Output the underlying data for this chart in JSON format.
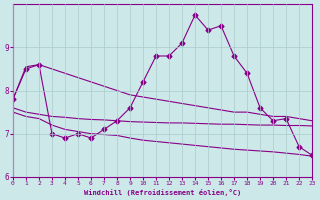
{
  "background_color": "#cce8e8",
  "grid_color": "#aacccc",
  "line_color": "#880088",
  "xlabel": "Windchill (Refroidissement éolien,°C)",
  "xlim": [
    0,
    23
  ],
  "ylim": [
    6,
    10
  ],
  "yticks": [
    6,
    7,
    8,
    9
  ],
  "xticks": [
    0,
    1,
    2,
    3,
    4,
    5,
    6,
    7,
    8,
    9,
    10,
    11,
    12,
    13,
    14,
    15,
    16,
    17,
    18,
    19,
    20,
    21,
    22,
    23
  ],
  "series": [
    {
      "x": [
        0,
        1,
        2,
        3,
        4,
        5,
        6,
        7,
        8,
        9,
        10,
        11,
        12,
        13,
        14,
        15,
        16,
        17,
        18,
        19,
        20,
        21,
        22,
        23
      ],
      "y": [
        7.8,
        8.5,
        8.6,
        7.0,
        6.9,
        7.0,
        6.9,
        7.1,
        7.3,
        7.6,
        8.2,
        8.8,
        8.8,
        9.1,
        9.75,
        9.4,
        9.5,
        8.8,
        8.4,
        7.6,
        7.3,
        7.35,
        6.7,
        6.5
      ],
      "marker": "D",
      "markersize": 2.5
    },
    {
      "x": [
        0,
        1,
        2,
        3,
        4,
        5,
        6,
        7,
        8,
        9,
        10,
        11,
        12,
        13,
        14,
        15,
        16,
        17,
        18,
        19,
        20,
        21,
        22,
        23
      ],
      "y": [
        7.8,
        8.55,
        8.6,
        8.5,
        8.4,
        8.3,
        8.2,
        8.1,
        8.0,
        7.9,
        7.85,
        7.8,
        7.75,
        7.7,
        7.65,
        7.6,
        7.55,
        7.5,
        7.5,
        7.45,
        7.4,
        7.4,
        7.35,
        7.3
      ],
      "marker": null,
      "markersize": 0
    },
    {
      "x": [
        0,
        1,
        2,
        3,
        4,
        5,
        6,
        7,
        8,
        9,
        10,
        11,
        12,
        13,
        14,
        15,
        16,
        17,
        18,
        19,
        20,
        21,
        22,
        23
      ],
      "y": [
        7.6,
        7.5,
        7.45,
        7.4,
        7.38,
        7.35,
        7.33,
        7.32,
        7.3,
        7.28,
        7.27,
        7.26,
        7.25,
        7.25,
        7.24,
        7.23,
        7.22,
        7.22,
        7.21,
        7.2,
        7.2,
        7.19,
        7.19,
        7.18
      ],
      "marker": null,
      "markersize": 0
    },
    {
      "x": [
        0,
        1,
        2,
        3,
        4,
        5,
        6,
        7,
        8,
        9,
        10,
        11,
        12,
        13,
        14,
        15,
        16,
        17,
        18,
        19,
        20,
        21,
        22,
        23
      ],
      "y": [
        7.5,
        7.4,
        7.35,
        7.2,
        7.1,
        7.05,
        7.0,
        6.98,
        6.96,
        6.9,
        6.85,
        6.82,
        6.79,
        6.76,
        6.73,
        6.7,
        6.67,
        6.64,
        6.62,
        6.6,
        6.58,
        6.55,
        6.52,
        6.48
      ],
      "marker": null,
      "markersize": 0
    }
  ]
}
